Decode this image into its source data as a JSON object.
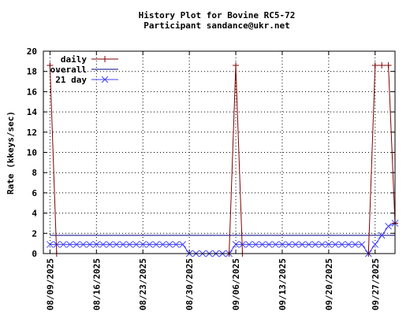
{
  "chart_data": {
    "type": "line",
    "title": "History Plot for Bovine RC5-72",
    "subtitle": "Participant sandance@ukr.net",
    "ylabel": "Rate (kkeys/sec)",
    "xlabel": "",
    "ylim": [
      0,
      20
    ],
    "y_ticks": [
      0,
      2,
      4,
      6,
      8,
      10,
      12,
      14,
      16,
      18,
      20
    ],
    "x_range": [
      "2025-08-08",
      "2025-09-30"
    ],
    "x_ticks": [
      "08/09/2025",
      "08/16/2025",
      "08/23/2025",
      "08/30/2025",
      "09/06/2025",
      "09/13/2025",
      "09/20/2025",
      "09/27/2025"
    ],
    "x_tick_dates": [
      "2025-08-09",
      "2025-08-16",
      "2025-08-23",
      "2025-08-30",
      "2025-09-06",
      "2025-09-13",
      "2025-09-20",
      "2025-09-27"
    ],
    "grid": true,
    "legend_position": "top-left",
    "series": [
      {
        "name": "daily",
        "color": "#800000",
        "marker": "plus",
        "points": [
          [
            "2025-08-09",
            18.6
          ],
          [
            "2025-08-10",
            0
          ],
          [
            "2025-09-05",
            0
          ],
          [
            "2025-09-06",
            18.6
          ],
          [
            "2025-09-07",
            0
          ],
          [
            "2025-09-26",
            0
          ],
          [
            "2025-09-27",
            18.6
          ],
          [
            "2025-09-28",
            18.6
          ],
          [
            "2025-09-29",
            18.6
          ],
          [
            "2025-09-30",
            3.0
          ]
        ]
      },
      {
        "name": "overall",
        "color": "#000080",
        "marker": "none",
        "points": [
          [
            "2025-08-09",
            1.8
          ],
          [
            "2025-09-30",
            1.8
          ]
        ]
      },
      {
        "name": "21 day",
        "color": "#4040ff",
        "marker": "cross",
        "points": [
          [
            "2025-08-09",
            0.9
          ],
          [
            "2025-08-10",
            0.9
          ],
          [
            "2025-08-11",
            0.9
          ],
          [
            "2025-08-12",
            0.9
          ],
          [
            "2025-08-13",
            0.9
          ],
          [
            "2025-08-14",
            0.9
          ],
          [
            "2025-08-15",
            0.9
          ],
          [
            "2025-08-16",
            0.9
          ],
          [
            "2025-08-17",
            0.9
          ],
          [
            "2025-08-18",
            0.9
          ],
          [
            "2025-08-19",
            0.9
          ],
          [
            "2025-08-20",
            0.9
          ],
          [
            "2025-08-21",
            0.9
          ],
          [
            "2025-08-22",
            0.9
          ],
          [
            "2025-08-23",
            0.9
          ],
          [
            "2025-08-24",
            0.9
          ],
          [
            "2025-08-25",
            0.9
          ],
          [
            "2025-08-26",
            0.9
          ],
          [
            "2025-08-27",
            0.9
          ],
          [
            "2025-08-28",
            0.9
          ],
          [
            "2025-08-29",
            0.9
          ],
          [
            "2025-08-30",
            0
          ],
          [
            "2025-08-31",
            0
          ],
          [
            "2025-09-01",
            0
          ],
          [
            "2025-09-02",
            0
          ],
          [
            "2025-09-03",
            0
          ],
          [
            "2025-09-04",
            0
          ],
          [
            "2025-09-05",
            0
          ],
          [
            "2025-09-06",
            0.9
          ],
          [
            "2025-09-07",
            0.9
          ],
          [
            "2025-09-08",
            0.9
          ],
          [
            "2025-09-09",
            0.9
          ],
          [
            "2025-09-10",
            0.9
          ],
          [
            "2025-09-11",
            0.9
          ],
          [
            "2025-09-12",
            0.9
          ],
          [
            "2025-09-13",
            0.9
          ],
          [
            "2025-09-14",
            0.9
          ],
          [
            "2025-09-15",
            0.9
          ],
          [
            "2025-09-16",
            0.9
          ],
          [
            "2025-09-17",
            0.9
          ],
          [
            "2025-09-18",
            0.9
          ],
          [
            "2025-09-19",
            0.9
          ],
          [
            "2025-09-20",
            0.9
          ],
          [
            "2025-09-21",
            0.9
          ],
          [
            "2025-09-22",
            0.9
          ],
          [
            "2025-09-23",
            0.9
          ],
          [
            "2025-09-24",
            0.9
          ],
          [
            "2025-09-25",
            0.9
          ],
          [
            "2025-09-26",
            0
          ],
          [
            "2025-09-27",
            0.9
          ],
          [
            "2025-09-28",
            1.8
          ],
          [
            "2025-09-29",
            2.7
          ],
          [
            "2025-09-30",
            3.0
          ]
        ]
      }
    ]
  }
}
